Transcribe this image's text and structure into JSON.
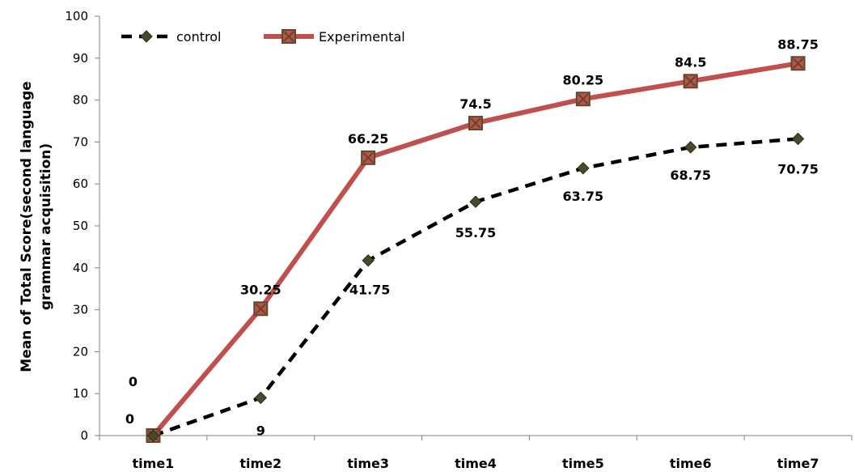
{
  "chart_data": {
    "type": "line",
    "categories": [
      "time1",
      "time2",
      "time3",
      "time4",
      "time5",
      "time6",
      "time7"
    ],
    "ylim": [
      0,
      100
    ],
    "yticks": [
      0,
      10,
      20,
      30,
      40,
      50,
      60,
      70,
      80,
      90,
      100
    ],
    "ylabel_line1": "Mean of Total Score(second language",
    "ylabel_line2": "grammar acquisition)",
    "legend_position": "top-left",
    "grid": false,
    "series": [
      {
        "name": "control",
        "values": [
          0,
          9,
          41.75,
          55.75,
          63.75,
          68.75,
          70.75
        ],
        "labels": [
          "0",
          "9",
          "41.75",
          "55.75",
          "63.75",
          "68.75",
          "70.75"
        ],
        "color": "#000000",
        "marker_color": "#4a4a2a",
        "style": "dashed",
        "marker": "diamond"
      },
      {
        "name": "Experimental",
        "values": [
          0,
          30.25,
          66.25,
          74.5,
          80.25,
          84.5,
          88.75
        ],
        "labels": [
          "0",
          "30.25",
          "66.25",
          "74.5",
          "80.25",
          "84.5",
          "88.75"
        ],
        "color": "#c0504d",
        "marker_color": "#5a4a2a",
        "style": "solid",
        "marker": "square-x"
      }
    ]
  }
}
